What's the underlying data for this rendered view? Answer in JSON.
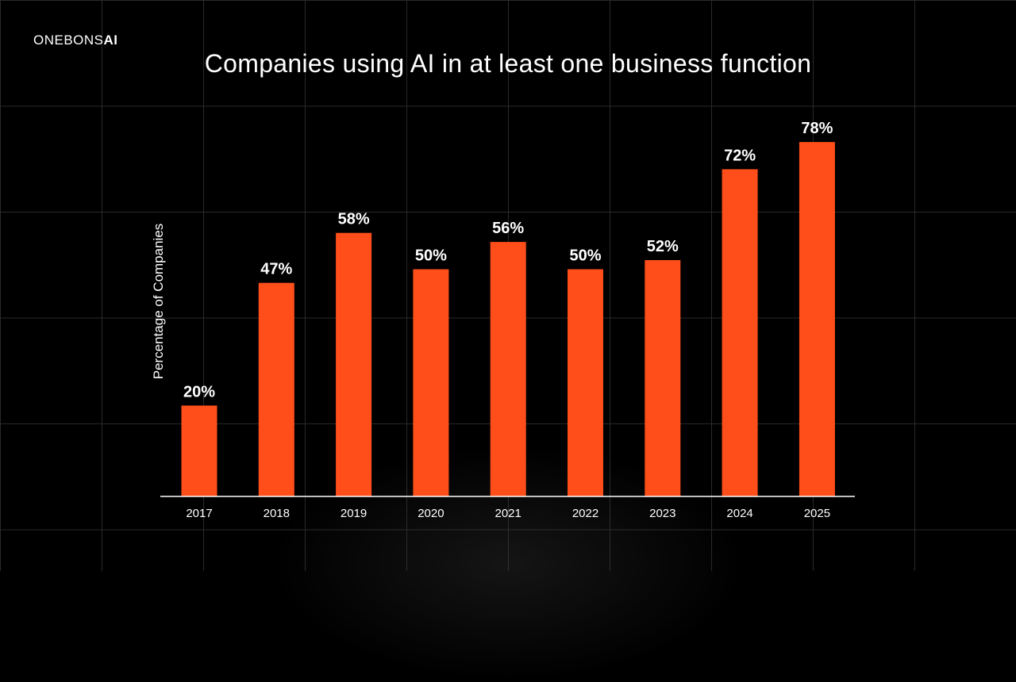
{
  "brand": {
    "name_regular": "ONEBONS",
    "name_bold": "AI"
  },
  "colors": {
    "background": "#000000",
    "bar": "#ff4e1a",
    "grid": "#2a2a2a",
    "text": "#ffffff"
  },
  "chart_data": {
    "type": "bar",
    "title": "Companies using AI in at least one business function",
    "xlabel": "",
    "ylabel": "Percentage of Companies",
    "categories": [
      "2017",
      "2018",
      "2019",
      "2020",
      "2021",
      "2022",
      "2023",
      "2024",
      "2025"
    ],
    "values": [
      20,
      47,
      58,
      50,
      56,
      50,
      52,
      72,
      78
    ],
    "value_labels": [
      "20%",
      "47%",
      "58%",
      "50%",
      "56%",
      "50%",
      "52%",
      "72%",
      "78%"
    ],
    "ylim": [
      0,
      100
    ],
    "grid": false,
    "legend": "none"
  }
}
